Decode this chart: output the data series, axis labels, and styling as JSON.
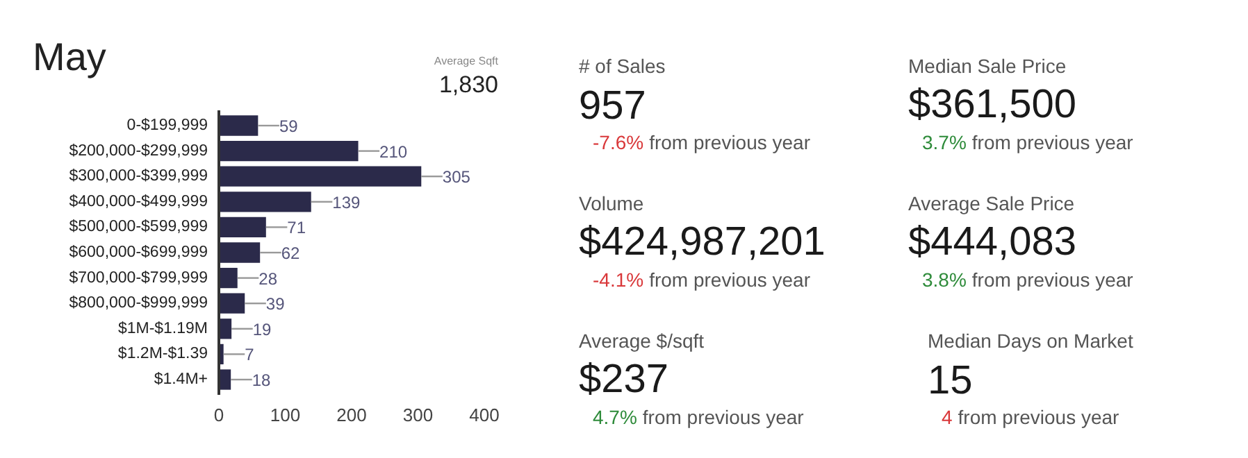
{
  "chart_data": [
    {
      "type": "bar",
      "orientation": "horizontal",
      "title": "May",
      "annotations": [
        "Average Sqft",
        "1,830"
      ],
      "categories": [
        "0-$199,999",
        "$200,000-$299,999",
        "$300,000-$399,999",
        "$400,000-$499,999",
        "$500,000-$599,999",
        "$600,000-$699,999",
        "$700,000-$799,999",
        "$800,000-$999,999",
        "$1M-$1.19M",
        "$1.2M-$1.39",
        "$1.4M+"
      ],
      "values": [
        59,
        210,
        305,
        139,
        71,
        62,
        28,
        39,
        19,
        7,
        18
      ],
      "color": "#2b2a4a",
      "xlim": [
        0,
        400
      ],
      "xticks": [
        0,
        100,
        200,
        300,
        400
      ],
      "data_labels": true
    },
    {
      "type": "other",
      "annotations": [
        "# of Sales",
        "957",
        "-7.6%",
        "from previous year",
        "Median Sale Price",
        "$361,500",
        "3.7%",
        "from previous year",
        "Volume",
        "$424,987,201",
        "-4.1%",
        "from previous year",
        "Average Sale Price",
        "$444,083",
        "3.8%",
        "from previous year",
        "Average $/sqft",
        "$237",
        "4.7%",
        "from previous year",
        "Median Days on Market",
        "15",
        "4",
        "from previous year"
      ]
    }
  ]
}
